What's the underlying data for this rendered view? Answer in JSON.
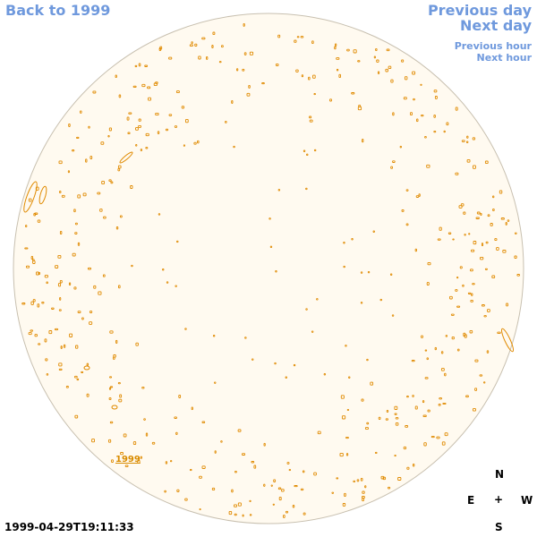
{
  "navigation": {
    "back": "Back to 1999",
    "previous_day": "Previous day",
    "next_day": "Next day",
    "previous_hour": "Previous hour",
    "next_hour": "Next hour"
  },
  "disk": {
    "year_label": "1999",
    "fill_color": "#fffaf0",
    "outline_color": "#c8c0b0",
    "region_color": "#e08a00"
  },
  "compass": {
    "north": "N",
    "east": "E",
    "center": "+",
    "west": "W",
    "south": "S"
  },
  "timestamp": "1999-04-29T19:11:33",
  "colors": {
    "link": "#6f99dd",
    "text": "#000000"
  }
}
